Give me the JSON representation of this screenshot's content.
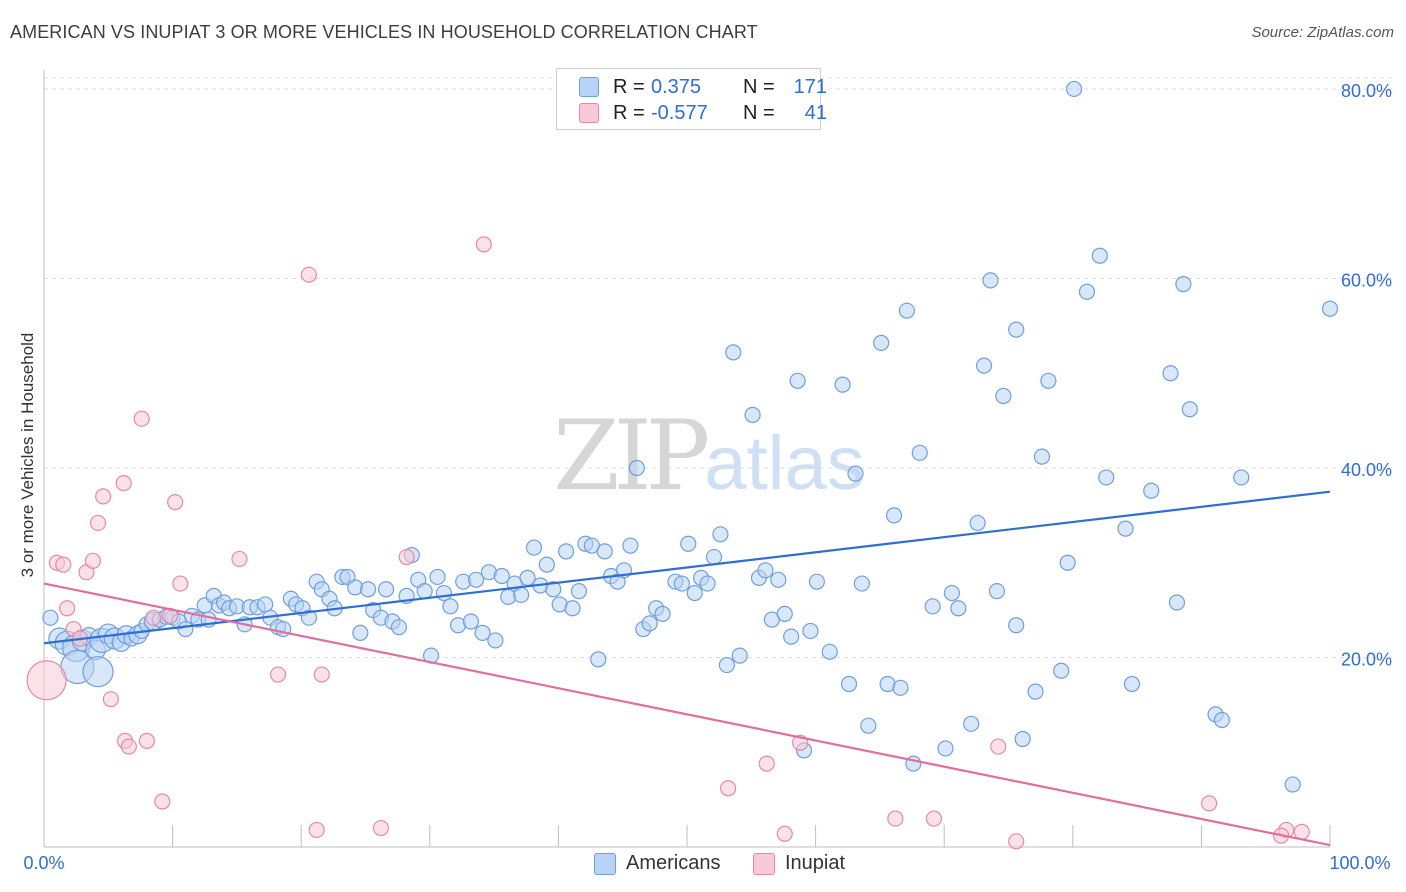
{
  "title": "AMERICAN VS INUPIAT 3 OR MORE VEHICLES IN HOUSEHOLD CORRELATION CHART",
  "source": "Source: ZipAtlas.com",
  "watermark": {
    "zip": "ZIP",
    "atlas": "atlas"
  },
  "legend": {
    "rows": [
      {
        "r_label": "R =",
        "r_value": "0.375",
        "n_label": "N =",
        "n_value": "171"
      },
      {
        "r_label": "R =",
        "r_value": "-0.577",
        "n_label": "N =",
        "n_value": "41"
      }
    ]
  },
  "colors": {
    "americans": "#2f6ed2",
    "inupiat": "#e0709b",
    "americans_fill": "#b8d3f5",
    "inupiat_fill": "#f8c9d6"
  },
  "chart_data": {
    "type": "scatter",
    "title": "AMERICAN VS INUPIAT 3 OR MORE VEHICLES IN HOUSEHOLD CORRELATION CHART",
    "xlabel": "",
    "ylabel": "3 or more Vehicles in Household",
    "xlim": [
      0,
      100
    ],
    "ylim": [
      0,
      82
    ],
    "x_tick_labels": [
      "0.0%",
      "100.0%"
    ],
    "y_ticks": [
      20,
      40,
      60,
      80
    ],
    "y_tick_labels": [
      "20.0%",
      "40.0%",
      "60.0%",
      "80.0%"
    ],
    "grid": "horizontal dashed",
    "legend_position": "bottom",
    "series": [
      {
        "name": "Americans",
        "trend": {
          "x": [
            0,
            100
          ],
          "y": [
            21.5,
            37.5
          ]
        },
        "points": [
          [
            0.5,
            24.2,
            1
          ],
          [
            1.2,
            22.0,
            1.4
          ],
          [
            1.8,
            21.5,
            1.6
          ],
          [
            2.5,
            21.0,
            1.8
          ],
          [
            2.6,
            19.0,
            2.2
          ],
          [
            3.0,
            21.8,
            1.4
          ],
          [
            3.5,
            22.2,
            1.2
          ],
          [
            4.0,
            20.8,
            1.3
          ],
          [
            4.2,
            18.5,
            2
          ],
          [
            4.5,
            21.8,
            1.6
          ],
          [
            5.0,
            22.5,
            1.3
          ],
          [
            5.5,
            22.0,
            1.4
          ],
          [
            6.0,
            21.6,
            1.2
          ],
          [
            6.4,
            22.4,
            1.2
          ],
          [
            6.8,
            22.0,
            1
          ],
          [
            7.3,
            22.4,
            1.2
          ],
          [
            7.6,
            22.8,
            1
          ],
          [
            8.0,
            23.5,
            1
          ],
          [
            8.5,
            23.8,
            1.2
          ],
          [
            9.0,
            24.0,
            1
          ],
          [
            9.5,
            24.3,
            1
          ],
          [
            10,
            24.2,
            1
          ],
          [
            10.5,
            23.8,
            1
          ],
          [
            11,
            23.0,
            1
          ],
          [
            11.5,
            24.4,
            1
          ],
          [
            12,
            24.0,
            1
          ],
          [
            12.5,
            25.5,
            1
          ],
          [
            12.8,
            24.0,
            1
          ],
          [
            13.2,
            26.5,
            1
          ],
          [
            13.6,
            25.5,
            1
          ],
          [
            14,
            25.8,
            1
          ],
          [
            14.4,
            25.2,
            1
          ],
          [
            15,
            25.4,
            1
          ],
          [
            15.6,
            23.5,
            1
          ],
          [
            16,
            25.3,
            1
          ],
          [
            16.6,
            25.3,
            1
          ],
          [
            17.2,
            25.6,
            1
          ],
          [
            17.6,
            24.2,
            1
          ],
          [
            18.2,
            23.2,
            1
          ],
          [
            18.6,
            23.0,
            1
          ],
          [
            19.2,
            26.2,
            1
          ],
          [
            19.6,
            25.6,
            1
          ],
          [
            20.1,
            25.2,
            1
          ],
          [
            20.6,
            24.2,
            1
          ],
          [
            21.2,
            28.0,
            1
          ],
          [
            21.6,
            27.2,
            1
          ],
          [
            22.2,
            26.2,
            1
          ],
          [
            22.6,
            25.2,
            1
          ],
          [
            23.2,
            28.5,
            1
          ],
          [
            23.6,
            28.5,
            1
          ],
          [
            24.2,
            27.4,
            1
          ],
          [
            24.6,
            22.6,
            1
          ],
          [
            25.2,
            27.2,
            1
          ],
          [
            25.6,
            25.0,
            1
          ],
          [
            26.2,
            24.2,
            1
          ],
          [
            26.6,
            27.2,
            1
          ],
          [
            27.1,
            23.8,
            1
          ],
          [
            27.6,
            23.2,
            1
          ],
          [
            28.2,
            26.5,
            1
          ],
          [
            28.6,
            30.8,
            1
          ],
          [
            29.1,
            28.2,
            1
          ],
          [
            29.6,
            27.0,
            1
          ],
          [
            30.1,
            20.2,
            1
          ],
          [
            30.6,
            28.5,
            1
          ],
          [
            31.1,
            26.8,
            1
          ],
          [
            31.6,
            25.4,
            1
          ],
          [
            32.2,
            23.4,
            1
          ],
          [
            32.6,
            28.0,
            1
          ],
          [
            33.2,
            23.8,
            1
          ],
          [
            33.6,
            28.2,
            1
          ],
          [
            34.1,
            22.6,
            1
          ],
          [
            34.6,
            29.0,
            1
          ],
          [
            35.1,
            21.8,
            1
          ],
          [
            35.6,
            28.6,
            1
          ],
          [
            36.1,
            26.4,
            1
          ],
          [
            36.6,
            27.8,
            1
          ],
          [
            37.1,
            26.6,
            1
          ],
          [
            37.6,
            28.4,
            1
          ],
          [
            38.1,
            31.6,
            1
          ],
          [
            38.6,
            27.6,
            1
          ],
          [
            39.1,
            29.8,
            1
          ],
          [
            39.6,
            27.2,
            1
          ],
          [
            40.1,
            25.6,
            1
          ],
          [
            40.6,
            31.2,
            1
          ],
          [
            41.1,
            25.2,
            1
          ],
          [
            41.6,
            27.0,
            1
          ],
          [
            42.1,
            32.0,
            1
          ],
          [
            42.6,
            31.8,
            1
          ],
          [
            43.1,
            19.8,
            1
          ],
          [
            43.6,
            31.2,
            1
          ],
          [
            44.1,
            28.6,
            1
          ],
          [
            44.6,
            28.0,
            1
          ],
          [
            45.1,
            29.2,
            1
          ],
          [
            45.6,
            31.8,
            1
          ],
          [
            46.1,
            40.0,
            1
          ],
          [
            46.6,
            23.0,
            1
          ],
          [
            47.1,
            23.6,
            1
          ],
          [
            47.6,
            25.2,
            1
          ],
          [
            48.1,
            24.6,
            1
          ],
          [
            49.1,
            28.0,
            1
          ],
          [
            49.6,
            27.8,
            1
          ],
          [
            50.1,
            32.0,
            1
          ],
          [
            50.6,
            26.8,
            1
          ],
          [
            51.1,
            28.4,
            1
          ],
          [
            51.6,
            27.8,
            1
          ],
          [
            52.1,
            30.6,
            1
          ],
          [
            52.6,
            33.0,
            1
          ],
          [
            53.1,
            19.2,
            1
          ],
          [
            53.6,
            52.2,
            1
          ],
          [
            54.1,
            20.2,
            1
          ],
          [
            55.1,
            45.6,
            1
          ],
          [
            55.6,
            28.4,
            1
          ],
          [
            56.1,
            29.2,
            1
          ],
          [
            56.6,
            24.0,
            1
          ],
          [
            57.1,
            28.2,
            1
          ],
          [
            57.6,
            24.6,
            1
          ],
          [
            58.1,
            22.2,
            1
          ],
          [
            58.6,
            49.2,
            1
          ],
          [
            59.1,
            10.2,
            1
          ],
          [
            59.6,
            22.8,
            1
          ],
          [
            60.1,
            28.0,
            1
          ],
          [
            61.1,
            20.6,
            1
          ],
          [
            62.1,
            48.8,
            1
          ],
          [
            62.6,
            17.2,
            1
          ],
          [
            63.1,
            39.4,
            1
          ],
          [
            63.6,
            27.8,
            1
          ],
          [
            64.1,
            12.8,
            1
          ],
          [
            65.1,
            53.2,
            1
          ],
          [
            65.6,
            17.2,
            1
          ],
          [
            66.1,
            35.0,
            1
          ],
          [
            66.6,
            16.8,
            1
          ],
          [
            67.1,
            56.6,
            1
          ],
          [
            67.6,
            8.8,
            1
          ],
          [
            68.1,
            41.6,
            1
          ],
          [
            69.1,
            25.4,
            1
          ],
          [
            70.1,
            10.4,
            1
          ],
          [
            70.6,
            26.8,
            1
          ],
          [
            71.1,
            25.2,
            1
          ],
          [
            72.1,
            13.0,
            1
          ],
          [
            72.6,
            34.2,
            1
          ],
          [
            73.1,
            50.8,
            1
          ],
          [
            73.6,
            59.8,
            1
          ],
          [
            74.1,
            27.0,
            1
          ],
          [
            74.6,
            47.6,
            1
          ],
          [
            75.6,
            23.4,
            1
          ],
          [
            75.6,
            54.6,
            1
          ],
          [
            76.1,
            11.4,
            1
          ],
          [
            77.1,
            16.4,
            1
          ],
          [
            77.6,
            41.2,
            1
          ],
          [
            78.1,
            49.2,
            1
          ],
          [
            79.1,
            18.6,
            1
          ],
          [
            79.6,
            30.0,
            1
          ],
          [
            80.1,
            80.0,
            1
          ],
          [
            81.1,
            58.6,
            1
          ],
          [
            82.1,
            62.4,
            1
          ],
          [
            82.6,
            39.0,
            1
          ],
          [
            84.1,
            33.6,
            1
          ],
          [
            84.6,
            17.2,
            1
          ],
          [
            86.1,
            37.6,
            1
          ],
          [
            87.6,
            50.0,
            1
          ],
          [
            88.1,
            25.8,
            1
          ],
          [
            88.6,
            59.4,
            1
          ],
          [
            89.1,
            46.2,
            1
          ],
          [
            91.1,
            14.0,
            1
          ],
          [
            91.6,
            13.4,
            1
          ],
          [
            93.1,
            39.0,
            1
          ],
          [
            97.1,
            6.6,
            1
          ],
          [
            100,
            56.8,
            1
          ]
        ]
      },
      {
        "name": "Inupiat",
        "trend": {
          "x": [
            0,
            100
          ],
          "y": [
            27.8,
            0.2
          ]
        },
        "points": [
          [
            0.2,
            17.6,
            2.6
          ],
          [
            1.0,
            30.0,
            1
          ],
          [
            1.5,
            29.8,
            1
          ],
          [
            1.8,
            25.2,
            1
          ],
          [
            2.3,
            23.0,
            1
          ],
          [
            2.8,
            22.0,
            1
          ],
          [
            3.3,
            29.0,
            1
          ],
          [
            3.8,
            30.2,
            1
          ],
          [
            4.2,
            34.2,
            1
          ],
          [
            4.6,
            37.0,
            1
          ],
          [
            5.2,
            15.6,
            1
          ],
          [
            6.2,
            38.4,
            1
          ],
          [
            6.3,
            11.2,
            1
          ],
          [
            6.6,
            10.6,
            1
          ],
          [
            7.6,
            45.2,
            1
          ],
          [
            8.0,
            11.2,
            1
          ],
          [
            8.5,
            24.2,
            1
          ],
          [
            9.2,
            4.8,
            1
          ],
          [
            9.8,
            24.4,
            1
          ],
          [
            10.2,
            36.4,
            1
          ],
          [
            10.6,
            27.8,
            1
          ],
          [
            15.2,
            30.4,
            1
          ],
          [
            18.2,
            18.2,
            1
          ],
          [
            20.6,
            60.4,
            1
          ],
          [
            21.2,
            1.8,
            1
          ],
          [
            21.6,
            18.2,
            1
          ],
          [
            26.2,
            2.0,
            1
          ],
          [
            28.2,
            30.6,
            1
          ],
          [
            34.2,
            63.6,
            1
          ],
          [
            53.2,
            6.2,
            1
          ],
          [
            56.2,
            8.8,
            1
          ],
          [
            57.6,
            1.4,
            1
          ],
          [
            58.8,
            11.0,
            1
          ],
          [
            66.2,
            3.0,
            1
          ],
          [
            69.2,
            3.0,
            1
          ],
          [
            74.2,
            10.6,
            1
          ],
          [
            75.6,
            0.6,
            1
          ],
          [
            90.6,
            4.6,
            1
          ],
          [
            96.6,
            1.8,
            1
          ],
          [
            96.2,
            1.2,
            1
          ],
          [
            97.8,
            1.6,
            1
          ]
        ]
      }
    ]
  },
  "bottom_legend": [
    {
      "label": "Americans",
      "color": "blue"
    },
    {
      "label": "Inupiat",
      "color": "pink"
    }
  ]
}
